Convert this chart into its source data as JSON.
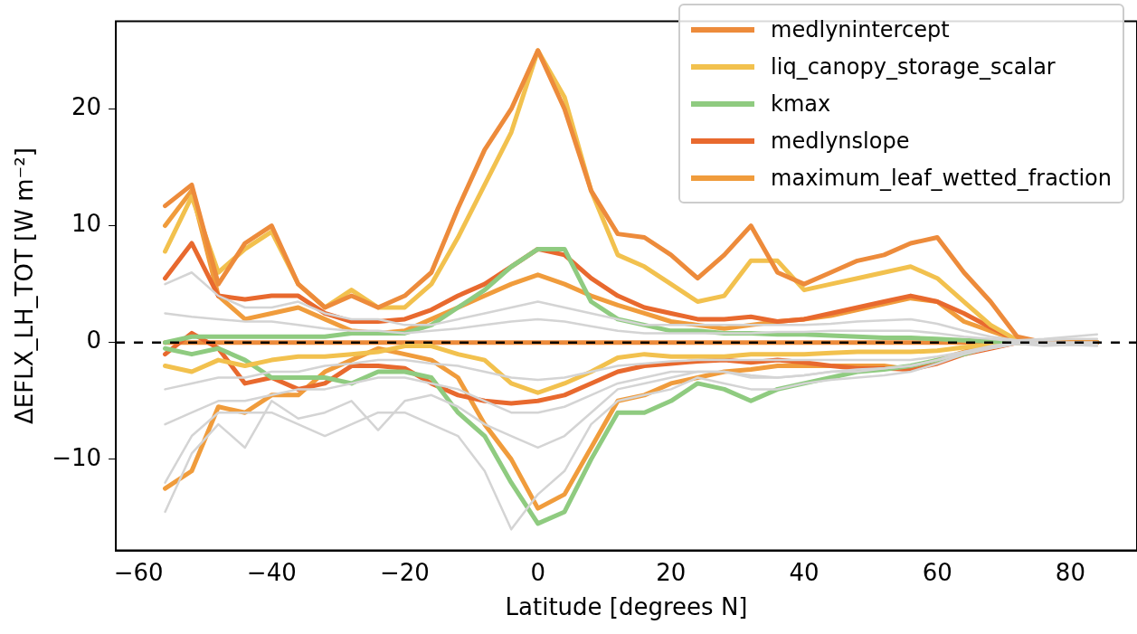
{
  "chart_data": {
    "type": "line",
    "xlabel": "Latitude [degrees N]",
    "ylabel": "ΔEFLX_LH_TOT [W m⁻²]",
    "x": [
      -56,
      -52,
      -48,
      -44,
      -40,
      -36,
      -32,
      -28,
      -24,
      -20,
      -16,
      -12,
      -8,
      -4,
      0,
      4,
      8,
      12,
      16,
      20,
      24,
      28,
      32,
      36,
      40,
      44,
      48,
      52,
      56,
      60,
      64,
      68,
      72,
      76,
      80,
      84
    ],
    "xlim": [
      -63.4,
      90
    ],
    "ylim": [
      -17.8,
      27.5
    ],
    "xticks": [
      {
        "value": -60,
        "label": "−60"
      },
      {
        "value": -40,
        "label": "−40"
      },
      {
        "value": -20,
        "label": "−20"
      },
      0,
      20,
      40,
      60,
      80
    ],
    "yticks": [
      {
        "value": -10,
        "label": "−10"
      },
      0,
      10,
      20
    ],
    "grid": false,
    "legend": "top right",
    "marker": "none",
    "line_style": "solid",
    "ref_lines": [
      {
        "axis": "y",
        "value": 0,
        "color": "#000000",
        "line_style": "dashed"
      }
    ],
    "series": [
      {
        "color": "#d4d4d4",
        "values": [
          5,
          6,
          4,
          3,
          3,
          3.5,
          2.5,
          2,
          2,
          1.5,
          1.5,
          2,
          2.5,
          3,
          3.5,
          3,
          2.5,
          2,
          1.5,
          1.5,
          1.5,
          1.5,
          1.5,
          1.5,
          1.5,
          1.6,
          1.8,
          1.9,
          2,
          1.6,
          1,
          0.5,
          0.2,
          0.3,
          0.5,
          0.7
        ]
      },
      {
        "color": "#d4d4d4",
        "values": [
          2.5,
          2.2,
          2,
          1.8,
          1.8,
          1.5,
          1.2,
          1,
          1,
          0.8,
          1,
          1.2,
          1.5,
          1.8,
          2,
          1.8,
          1.4,
          1,
          0.8,
          0.8,
          0.8,
          0.8,
          0.8,
          0.9,
          0.9,
          1,
          1,
          1,
          1,
          0.8,
          0.5,
          0.3,
          0.1,
          0.2,
          0.3,
          0.3
        ]
      },
      {
        "color": "#d4d4d4",
        "values": [
          -4,
          -3.5,
          -3,
          -3,
          -2.5,
          -2.5,
          -2,
          -1.8,
          -1.5,
          -1.5,
          -1.8,
          -2,
          -2.5,
          -3,
          -3.2,
          -3,
          -2.5,
          -2,
          -1.8,
          -1.6,
          -1.5,
          -1.5,
          -1.5,
          -1.5,
          -1.5,
          -1.5,
          -1.5,
          -1.5,
          -1.5,
          -1.2,
          -0.8,
          -0.4,
          -0.1,
          -0.3,
          -0.2,
          -0.3
        ]
      },
      {
        "color": "#d4d4d4",
        "values": [
          -7,
          -6,
          -5,
          -5,
          -4.5,
          -4,
          -4,
          -3.5,
          -3,
          -3,
          -3.5,
          -4,
          -5,
          -6,
          -6,
          -5.5,
          -4.5,
          -3.5,
          -3,
          -2.5,
          -2.5,
          -2.5,
          -2.8,
          -3,
          -2.8,
          -2.5,
          -2.5,
          -2.2,
          -2,
          -1.5,
          -1,
          -0.5,
          -0.1,
          -0.2,
          -0.2,
          -0.2
        ]
      },
      {
        "color": "#d4d4d4",
        "values": [
          -12,
          -8,
          -6,
          -6,
          -6,
          -7,
          -8,
          -7,
          -6,
          -6,
          -7,
          -8,
          -11,
          -16,
          -13,
          -11,
          -7,
          -5,
          -4.5,
          -4,
          -3,
          -3.5,
          -4,
          -4,
          -3.5,
          -3.2,
          -3,
          -2.8,
          -2.5,
          -1.8,
          -1,
          -0.5,
          -0.1,
          0,
          0,
          0
        ]
      },
      {
        "color": "#d4d4d4",
        "values": [
          -14.5,
          -9.5,
          -7,
          -9,
          -5,
          -6.5,
          -6,
          -5,
          -7.5,
          -5,
          -4.5,
          -5.5,
          -7,
          -8,
          -9,
          -8,
          -6,
          -4,
          -3.5,
          -3,
          -2.5,
          -2.5,
          -3,
          -3,
          -2.8,
          -2.5,
          -2.3,
          -2.2,
          -2,
          -1.5,
          -0.8,
          -0.3,
          0,
          0,
          0,
          0
        ]
      },
      {
        "name": "medlynintercept",
        "color": "#ed8b3b",
        "values": [
          11.7,
          13.5,
          5,
          8.5,
          10,
          5,
          3,
          4,
          3,
          4,
          6,
          11.5,
          16.5,
          20,
          25,
          20,
          13,
          9.3,
          9,
          7.5,
          5.5,
          7.5,
          10,
          6,
          5,
          6,
          7,
          7.5,
          8.5,
          9,
          6,
          3.5,
          0.5,
          0,
          0,
          0
        ]
      },
      {
        "name": "liq_canopy_storage_scalar",
        "color": "#f2c14e",
        "values": [
          7.8,
          12.5,
          6,
          8,
          9.5,
          5,
          3,
          4.5,
          3,
          3,
          5,
          9,
          13.5,
          18,
          25,
          21,
          13,
          7.5,
          6.5,
          5,
          3.5,
          4,
          7,
          7,
          4.5,
          5,
          5.5,
          6,
          6.5,
          5.5,
          3.5,
          1.5,
          0.2,
          0,
          0,
          0
        ]
      },
      {
        "name": "kmax",
        "color": "#8fcb80",
        "values": [
          0,
          0.5,
          0.5,
          0.5,
          0.5,
          0.5,
          0.5,
          0.8,
          0.8,
          0.8,
          1.5,
          3,
          4.5,
          6.5,
          8,
          8,
          3.5,
          2,
          1.5,
          1,
          1,
          0.8,
          0.8,
          0.7,
          0.7,
          0.6,
          0.5,
          0.4,
          0.4,
          0.3,
          0.2,
          0.1,
          0,
          0,
          0,
          0
        ]
      },
      {
        "name": "medlynslope",
        "color": "#e8692e",
        "values": [
          5.5,
          8.5,
          4,
          3.7,
          4,
          4,
          2.5,
          1.8,
          1.8,
          2,
          2.8,
          4,
          5,
          6.5,
          8,
          7.5,
          5.5,
          4,
          3,
          2.5,
          2,
          2,
          2.2,
          1.8,
          2,
          2.5,
          3,
          3.5,
          4,
          3.5,
          2.5,
          1.3,
          0.2,
          0,
          0,
          0
        ]
      },
      {
        "name": "maximum_leaf_wetted_fraction",
        "color": "#f09c3c",
        "values": [
          10,
          13,
          4,
          2,
          2.5,
          3,
          2,
          1,
          0.8,
          1,
          2,
          3,
          4,
          5,
          5.8,
          5,
          4,
          3.2,
          2.5,
          1.8,
          1.5,
          1.2,
          1.5,
          1.8,
          2,
          2.3,
          2.8,
          3.3,
          3.8,
          3.5,
          1.8,
          1,
          0.2,
          0,
          0,
          0
        ]
      },
      {
        "color": "#f2c14e",
        "values": [
          -2,
          -2.5,
          -1.5,
          -2,
          -1.5,
          -1.2,
          -1.2,
          -1,
          -0.8,
          -0.3,
          -0.3,
          -1,
          -1.5,
          -3.5,
          -4.3,
          -3.5,
          -2.5,
          -1.3,
          -1,
          -1.2,
          -1.2,
          -1.2,
          -1,
          -1,
          -1,
          -0.9,
          -0.8,
          -0.8,
          -0.8,
          -0.7,
          -0.4,
          -0.2,
          0,
          0,
          0,
          0
        ]
      },
      {
        "color": "#8fcb80",
        "values": [
          -0.5,
          -1,
          -0.5,
          -1.5,
          -3,
          -3,
          -3,
          -3.5,
          -2.5,
          -2.5,
          -3,
          -6,
          -8,
          -12,
          -15.5,
          -14.5,
          -10,
          -6,
          -6,
          -5,
          -3.5,
          -4,
          -5,
          -4,
          -3.5,
          -3,
          -2.5,
          -2.3,
          -2,
          -1.5,
          -1,
          -0.3,
          0,
          0,
          0,
          0
        ]
      },
      {
        "color": "#e8692e",
        "values": [
          -1,
          0.8,
          -0.5,
          -3.5,
          -3,
          -4,
          -3.5,
          -2,
          -2,
          -2.2,
          -3.5,
          -4.5,
          -5,
          -5.2,
          -5,
          -4.5,
          -3.5,
          -2.5,
          -2,
          -1.8,
          -1.6,
          -1.5,
          -1.7,
          -1.5,
          -1.7,
          -2,
          -2.2,
          -2.2,
          -2.3,
          -1.8,
          -1,
          -0.5,
          0,
          0,
          0,
          0
        ]
      },
      {
        "color": "#f09c3c",
        "values": [
          -12.5,
          -11,
          -5.5,
          -6,
          -4.5,
          -4.5,
          -2.5,
          -1.5,
          -0.5,
          -1,
          -1.5,
          -3,
          -7,
          -10,
          -14.2,
          -13,
          -9,
          -5,
          -4.5,
          -3.5,
          -3,
          -2.5,
          -2.3,
          -2,
          -2,
          -2,
          -2,
          -2,
          -2.3,
          -1.5,
          -0.8,
          -0.3,
          0,
          0,
          0,
          0
        ]
      },
      {
        "color": "#ed8b3b",
        "values": [
          0,
          0,
          0,
          0,
          0,
          0,
          0,
          0,
          0,
          0,
          0,
          0,
          0,
          0,
          0,
          0,
          0,
          0,
          0,
          0,
          0,
          0,
          0,
          0,
          0,
          0,
          0,
          0,
          0,
          0,
          0,
          0,
          0,
          0,
          0,
          0
        ]
      }
    ]
  }
}
